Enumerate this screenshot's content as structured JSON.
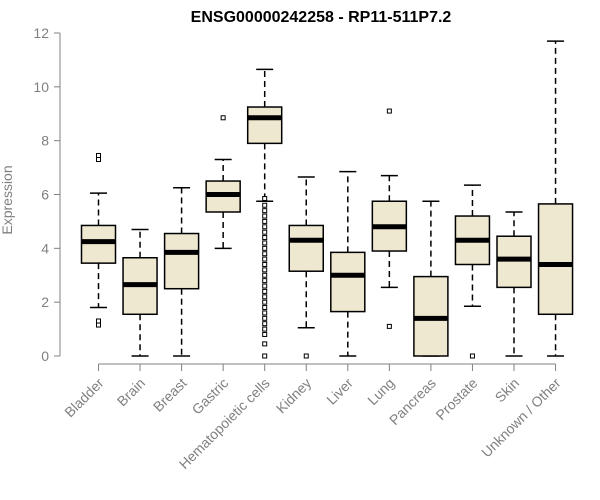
{
  "chart_data": {
    "type": "boxplot",
    "title": "ENSG00000242258 - RP11-511P7.2",
    "xlabel": "",
    "ylabel": "Expression",
    "ylim": [
      0,
      12
    ],
    "yticks": [
      0,
      2,
      4,
      6,
      8,
      10,
      12
    ],
    "grid": false,
    "legend": "none",
    "colors": {
      "box_fill": "#efe8d0",
      "stroke": "#000000",
      "axis": "#808080",
      "text": "#808080"
    },
    "categories": [
      "Bladder",
      "Brain",
      "Breast",
      "Gastric",
      "Hematopoietic cells",
      "Kidney",
      "Liver",
      "Lung",
      "Pancreas",
      "Prostate",
      "Skin",
      "Unknown / Other"
    ],
    "boxes": [
      {
        "category": "Bladder",
        "whisker_low": 1.8,
        "q1": 3.45,
        "median": 4.25,
        "q3": 4.85,
        "whisker_high": 6.05,
        "outliers": [
          1.15,
          1.3,
          7.3,
          7.45
        ]
      },
      {
        "category": "Brain",
        "whisker_low": 0.0,
        "q1": 1.55,
        "median": 2.65,
        "q3": 3.65,
        "whisker_high": 4.7,
        "outliers": []
      },
      {
        "category": "Breast",
        "whisker_low": 0.0,
        "q1": 2.5,
        "median": 3.85,
        "q3": 4.55,
        "whisker_high": 6.25,
        "outliers": []
      },
      {
        "category": "Gastric",
        "whisker_low": 4.0,
        "q1": 5.35,
        "median": 6.0,
        "q3": 6.5,
        "whisker_high": 7.3,
        "outliers": [
          8.85
        ]
      },
      {
        "category": "Hematopoietic cells",
        "whisker_low": 5.75,
        "q1": 7.9,
        "median": 8.85,
        "q3": 9.25,
        "whisker_high": 10.65,
        "outliers": [
          0.0,
          0.45,
          0.8,
          1.0,
          1.2,
          1.4,
          1.6,
          1.8,
          2.0,
          2.2,
          2.4,
          2.6,
          2.8,
          3.0,
          3.2,
          3.4,
          3.6,
          3.8,
          4.0,
          4.2,
          4.4,
          4.6,
          4.8,
          5.0,
          5.2,
          5.4,
          5.6,
          5.85
        ]
      },
      {
        "category": "Kidney",
        "whisker_low": 1.05,
        "q1": 3.15,
        "median": 4.3,
        "q3": 4.85,
        "whisker_high": 6.65,
        "outliers": [
          0.0
        ]
      },
      {
        "category": "Liver",
        "whisker_low": 0.0,
        "q1": 1.65,
        "median": 3.0,
        "q3": 3.85,
        "whisker_high": 6.85,
        "outliers": []
      },
      {
        "category": "Lung",
        "whisker_low": 2.55,
        "q1": 3.9,
        "median": 4.8,
        "q3": 5.75,
        "whisker_high": 6.7,
        "outliers": [
          1.1,
          9.1
        ]
      },
      {
        "category": "Pancreas",
        "whisker_low": 0.0,
        "q1": 0.0,
        "median": 1.4,
        "q3": 2.95,
        "whisker_high": 5.75,
        "outliers": []
      },
      {
        "category": "Prostate",
        "whisker_low": 1.85,
        "q1": 3.4,
        "median": 4.3,
        "q3": 5.2,
        "whisker_high": 6.35,
        "outliers": [
          0.0
        ]
      },
      {
        "category": "Skin",
        "whisker_low": 0.0,
        "q1": 2.55,
        "median": 3.6,
        "q3": 4.45,
        "whisker_high": 5.35,
        "outliers": []
      },
      {
        "category": "Unknown / Other",
        "whisker_low": 0.0,
        "q1": 1.55,
        "median": 3.4,
        "q3": 5.65,
        "whisker_high": 11.7,
        "outliers": []
      }
    ]
  }
}
